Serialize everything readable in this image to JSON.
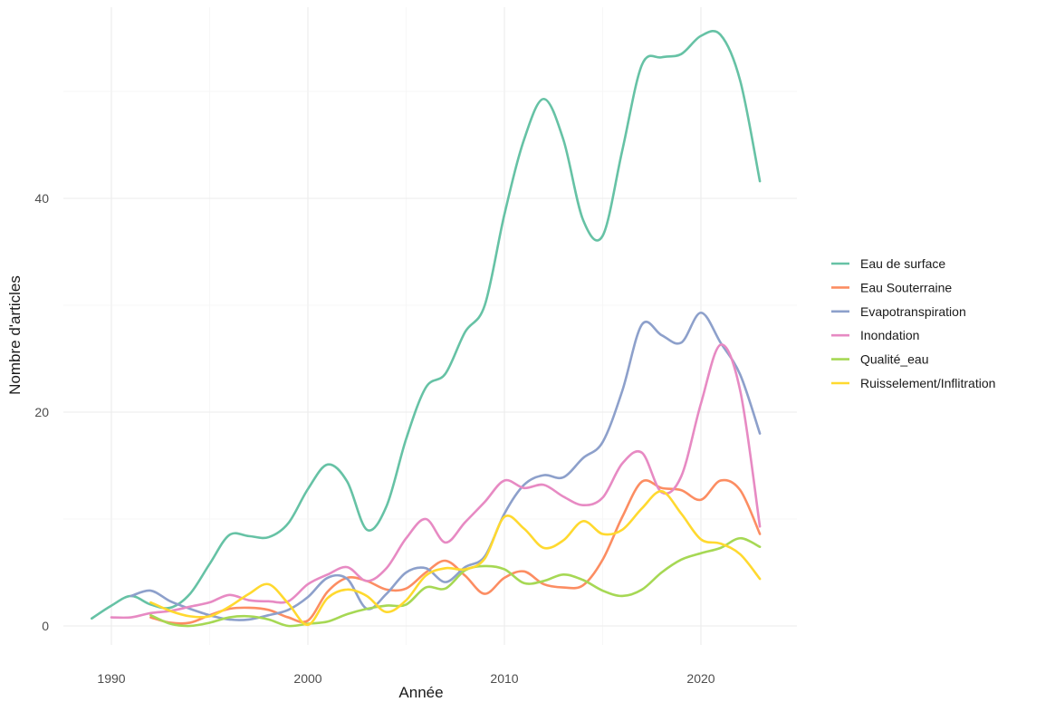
{
  "chart_data": {
    "type": "line",
    "title": "",
    "xlabel": "Année",
    "ylabel": "Nombre d'articles",
    "xlim": [
      1988,
      2024.5
    ],
    "ylim": [
      -1,
      57
    ],
    "x_ticks": [
      1990,
      2000,
      2010,
      2020
    ],
    "y_ticks": [
      0,
      20,
      40
    ],
    "grid": true,
    "legend_position": "right",
    "series": [
      {
        "name": "Eau de surface",
        "color": "#66c2a5",
        "x": [
          1989,
          1990,
          1991,
          1992,
          1993,
          1994,
          1995,
          1996,
          1997,
          1998,
          1999,
          2000,
          2001,
          2002,
          2003,
          2004,
          2005,
          2006,
          2007,
          2008,
          2009,
          2010,
          2011,
          2012,
          2013,
          2014,
          2015,
          2016,
          2017,
          2018,
          2019,
          2020,
          2021,
          2022,
          2023
        ],
        "y": [
          0.7,
          1.9,
          2.8,
          2.0,
          1.7,
          3.0,
          5.8,
          8.5,
          8.4,
          8.3,
          9.6,
          12.8,
          15.1,
          13.5,
          9.0,
          11.2,
          17.5,
          22.3,
          23.6,
          27.5,
          30.0,
          38.5,
          45.5,
          49.3,
          45.5,
          38.0,
          36.5,
          44.5,
          52.5,
          53.2,
          53.5,
          55.2,
          55.3,
          51.0,
          41.6
        ]
      },
      {
        "name": "Eau Souterraine",
        "color": "#fc8d62",
        "x": [
          1992,
          1993,
          1994,
          1995,
          1996,
          1997,
          1998,
          1999,
          2000,
          2001,
          2002,
          2003,
          2004,
          2005,
          2006,
          2007,
          2008,
          2009,
          2010,
          2011,
          2012,
          2013,
          2014,
          2015,
          2016,
          2017,
          2018,
          2019,
          2020,
          2021,
          2022,
          2023
        ],
        "y": [
          0.8,
          0.3,
          0.3,
          1.0,
          1.6,
          1.7,
          1.5,
          0.8,
          0.5,
          3.2,
          4.5,
          4.2,
          3.4,
          3.5,
          5.0,
          6.1,
          4.7,
          3.0,
          4.5,
          5.1,
          3.9,
          3.6,
          3.8,
          6.2,
          10.2,
          13.5,
          12.9,
          12.7,
          11.8,
          13.6,
          12.7,
          8.6
        ]
      },
      {
        "name": "Evapotranspiration",
        "color": "#8da0cb",
        "x": [
          1991,
          1992,
          1993,
          1994,
          1995,
          1996,
          1997,
          1998,
          1999,
          2000,
          2001,
          2002,
          2003,
          2004,
          2005,
          2006,
          2007,
          2008,
          2009,
          2010,
          2011,
          2012,
          2013,
          2014,
          2015,
          2016,
          2017,
          2018,
          2019,
          2020,
          2021,
          2022,
          2023
        ],
        "y": [
          2.8,
          3.3,
          2.3,
          1.6,
          1.0,
          0.6,
          0.6,
          1.0,
          1.5,
          2.7,
          4.5,
          4.4,
          1.6,
          3.0,
          5.0,
          5.4,
          4.1,
          5.5,
          6.5,
          10.5,
          13.2,
          14.1,
          13.9,
          15.7,
          17.2,
          22.0,
          28.2,
          27.2,
          26.5,
          29.3,
          26.5,
          23.5,
          18.0
        ]
      },
      {
        "name": "Inondation",
        "color": "#e78ac3",
        "x": [
          1990,
          1991,
          1992,
          1993,
          1994,
          1995,
          1996,
          1997,
          1998,
          1999,
          2000,
          2001,
          2002,
          2003,
          2004,
          2005,
          2006,
          2007,
          2008,
          2009,
          2010,
          2011,
          2012,
          2013,
          2014,
          2015,
          2016,
          2017,
          2018,
          2019,
          2020,
          2021,
          2022,
          2023
        ],
        "y": [
          0.8,
          0.8,
          1.2,
          1.4,
          1.8,
          2.2,
          2.9,
          2.4,
          2.3,
          2.3,
          3.9,
          4.8,
          5.5,
          4.2,
          5.4,
          8.2,
          10.0,
          7.8,
          9.7,
          11.6,
          13.6,
          12.9,
          13.2,
          12.1,
          11.3,
          12.0,
          15.2,
          16.2,
          12.5,
          14.0,
          20.8,
          26.3,
          22.0,
          9.3
        ]
      },
      {
        "name": "Qualité_eau",
        "color": "#a6d854",
        "x": [
          1992,
          1993,
          1994,
          1995,
          1996,
          1997,
          1998,
          1999,
          2000,
          2001,
          2002,
          2003,
          2004,
          2005,
          2006,
          2007,
          2008,
          2009,
          2010,
          2011,
          2012,
          2013,
          2014,
          2015,
          2016,
          2017,
          2018,
          2019,
          2020,
          2021,
          2022,
          2023
        ],
        "y": [
          1.0,
          0.2,
          0.0,
          0.3,
          0.8,
          0.9,
          0.6,
          0.0,
          0.2,
          0.4,
          1.1,
          1.6,
          1.9,
          2.0,
          3.6,
          3.5,
          5.2,
          5.6,
          5.3,
          4.0,
          4.2,
          4.8,
          4.3,
          3.3,
          2.8,
          3.4,
          5.0,
          6.2,
          6.8,
          7.3,
          8.2,
          7.4
        ]
      },
      {
        "name": "Ruisselement/Inflitration",
        "color": "#ffd92f",
        "x": [
          1992,
          1993,
          1994,
          1995,
          1996,
          1997,
          1998,
          1999,
          2000,
          2001,
          2002,
          2003,
          2004,
          2005,
          2006,
          2007,
          2008,
          2009,
          2010,
          2011,
          2012,
          2013,
          2014,
          2015,
          2016,
          2017,
          2018,
          2019,
          2020,
          2021,
          2022,
          2023
        ],
        "y": [
          2.2,
          1.4,
          0.9,
          0.9,
          1.8,
          3.0,
          3.9,
          2.1,
          0.1,
          2.6,
          3.4,
          2.8,
          1.3,
          2.4,
          4.7,
          5.4,
          5.3,
          6.3,
          10.2,
          9.1,
          7.3,
          8.0,
          9.8,
          8.6,
          9.0,
          11.0,
          12.6,
          10.5,
          8.1,
          7.7,
          6.7,
          4.4
        ]
      }
    ]
  }
}
